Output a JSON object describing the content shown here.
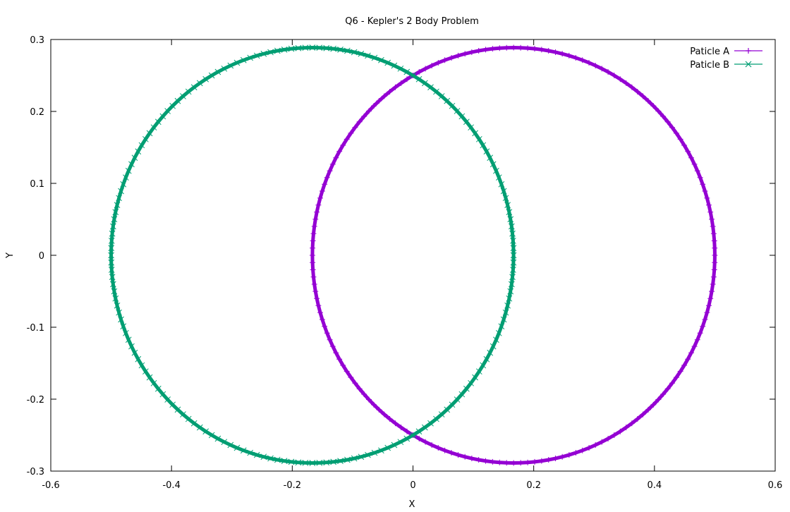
{
  "chart_data": {
    "type": "scatter",
    "title": "Q6 - Kepler's 2 Body Problem",
    "xlabel": "X",
    "ylabel": "Y",
    "xlim": [
      -0.6,
      0.6
    ],
    "ylim": [
      -0.3,
      0.3
    ],
    "xticks": [
      "-0.6",
      "-0.4",
      "-0.2",
      "0",
      "0.2",
      "0.4",
      "0.6"
    ],
    "yticks": [
      "-0.3",
      "-0.2",
      "-0.1",
      "0",
      "0.1",
      "0.2",
      "0.3"
    ],
    "grid": false,
    "legend_position": "top-right",
    "series": [
      {
        "name": "Paticle A",
        "marker": "plus",
        "color": "#9400d3",
        "orbit": {
          "center_x": 0.1667,
          "center_y": 0.0,
          "radius_x": 0.3333,
          "radius_y": 0.2887,
          "points": 180
        }
      },
      {
        "name": "Paticle B",
        "marker": "cross",
        "color": "#009e73",
        "orbit": {
          "center_x": -0.1667,
          "center_y": 0.0,
          "radius_x": 0.3333,
          "radius_y": 0.2887,
          "points": 180
        }
      }
    ]
  }
}
